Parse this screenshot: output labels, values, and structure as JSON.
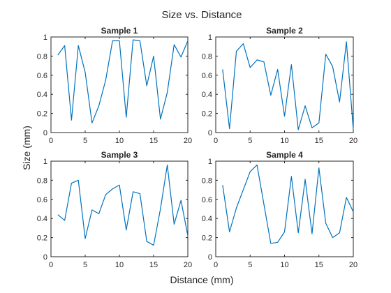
{
  "figure": {
    "title": "Size vs. Distance",
    "xlabel": "Distance (mm)",
    "ylabel": "Size (mm)"
  },
  "colors": {
    "line": "#0072BD",
    "axis": "#262626",
    "background": "#ffffff"
  },
  "chart_data": [
    {
      "type": "line",
      "title": "Sample 1",
      "xlim": [
        0,
        20
      ],
      "ylim": [
        0,
        1
      ],
      "xticks": [
        "0",
        "5",
        "10",
        "15",
        "20"
      ],
      "yticks": [
        "0",
        "0.2",
        "0.4",
        "0.6",
        "0.8",
        "1"
      ],
      "grid": false,
      "x": [
        1,
        2,
        3,
        4,
        5,
        6,
        7,
        8,
        9,
        10,
        11,
        12,
        13,
        14,
        15,
        16,
        17,
        18,
        19,
        20
      ],
      "y": [
        0.81,
        0.91,
        0.13,
        0.91,
        0.63,
        0.1,
        0.28,
        0.55,
        0.96,
        0.96,
        0.16,
        0.97,
        0.96,
        0.49,
        0.8,
        0.14,
        0.42,
        0.92,
        0.79,
        0.96
      ]
    },
    {
      "type": "line",
      "title": "Sample 2",
      "xlim": [
        0,
        20
      ],
      "ylim": [
        0,
        1
      ],
      "xticks": [
        "0",
        "5",
        "10",
        "15",
        "20"
      ],
      "yticks": [
        "0",
        "0.2",
        "0.4",
        "0.6",
        "0.8",
        "1"
      ],
      "grid": false,
      "x": [
        1,
        2,
        3,
        4,
        5,
        6,
        7,
        8,
        9,
        10,
        11,
        12,
        13,
        14,
        15,
        16,
        17,
        18,
        19,
        20
      ],
      "y": [
        0.66,
        0.04,
        0.85,
        0.93,
        0.68,
        0.76,
        0.74,
        0.39,
        0.66,
        0.17,
        0.71,
        0.03,
        0.28,
        0.05,
        0.1,
        0.82,
        0.69,
        0.32,
        0.95,
        0.03
      ]
    },
    {
      "type": "line",
      "title": "Sample 3",
      "xlim": [
        0,
        20
      ],
      "ylim": [
        0,
        1
      ],
      "xticks": [
        "0",
        "5",
        "10",
        "15",
        "20"
      ],
      "yticks": [
        "0",
        "0.2",
        "0.4",
        "0.6",
        "0.8",
        "1"
      ],
      "grid": false,
      "x": [
        1,
        2,
        3,
        4,
        5,
        6,
        7,
        8,
        9,
        10,
        11,
        12,
        13,
        14,
        15,
        16,
        17,
        18,
        19,
        20
      ],
      "y": [
        0.44,
        0.38,
        0.77,
        0.8,
        0.19,
        0.49,
        0.45,
        0.65,
        0.71,
        0.75,
        0.28,
        0.68,
        0.66,
        0.16,
        0.12,
        0.5,
        0.96,
        0.34,
        0.59,
        0.22
      ]
    },
    {
      "type": "line",
      "title": "Sample 4",
      "xlim": [
        0,
        20
      ],
      "ylim": [
        0,
        1
      ],
      "xticks": [
        "0",
        "5",
        "10",
        "15",
        "20"
      ],
      "yticks": [
        "0",
        "0.2",
        "0.4",
        "0.6",
        "0.8",
        "1"
      ],
      "grid": false,
      "x": [
        1,
        2,
        3,
        4,
        5,
        6,
        7,
        8,
        9,
        10,
        11,
        12,
        13,
        14,
        15,
        16,
        17,
        18,
        19,
        20
      ],
      "y": [
        0.75,
        0.26,
        0.51,
        0.7,
        0.89,
        0.96,
        0.55,
        0.14,
        0.15,
        0.26,
        0.84,
        0.25,
        0.81,
        0.24,
        0.93,
        0.35,
        0.2,
        0.25,
        0.62,
        0.47
      ]
    }
  ]
}
